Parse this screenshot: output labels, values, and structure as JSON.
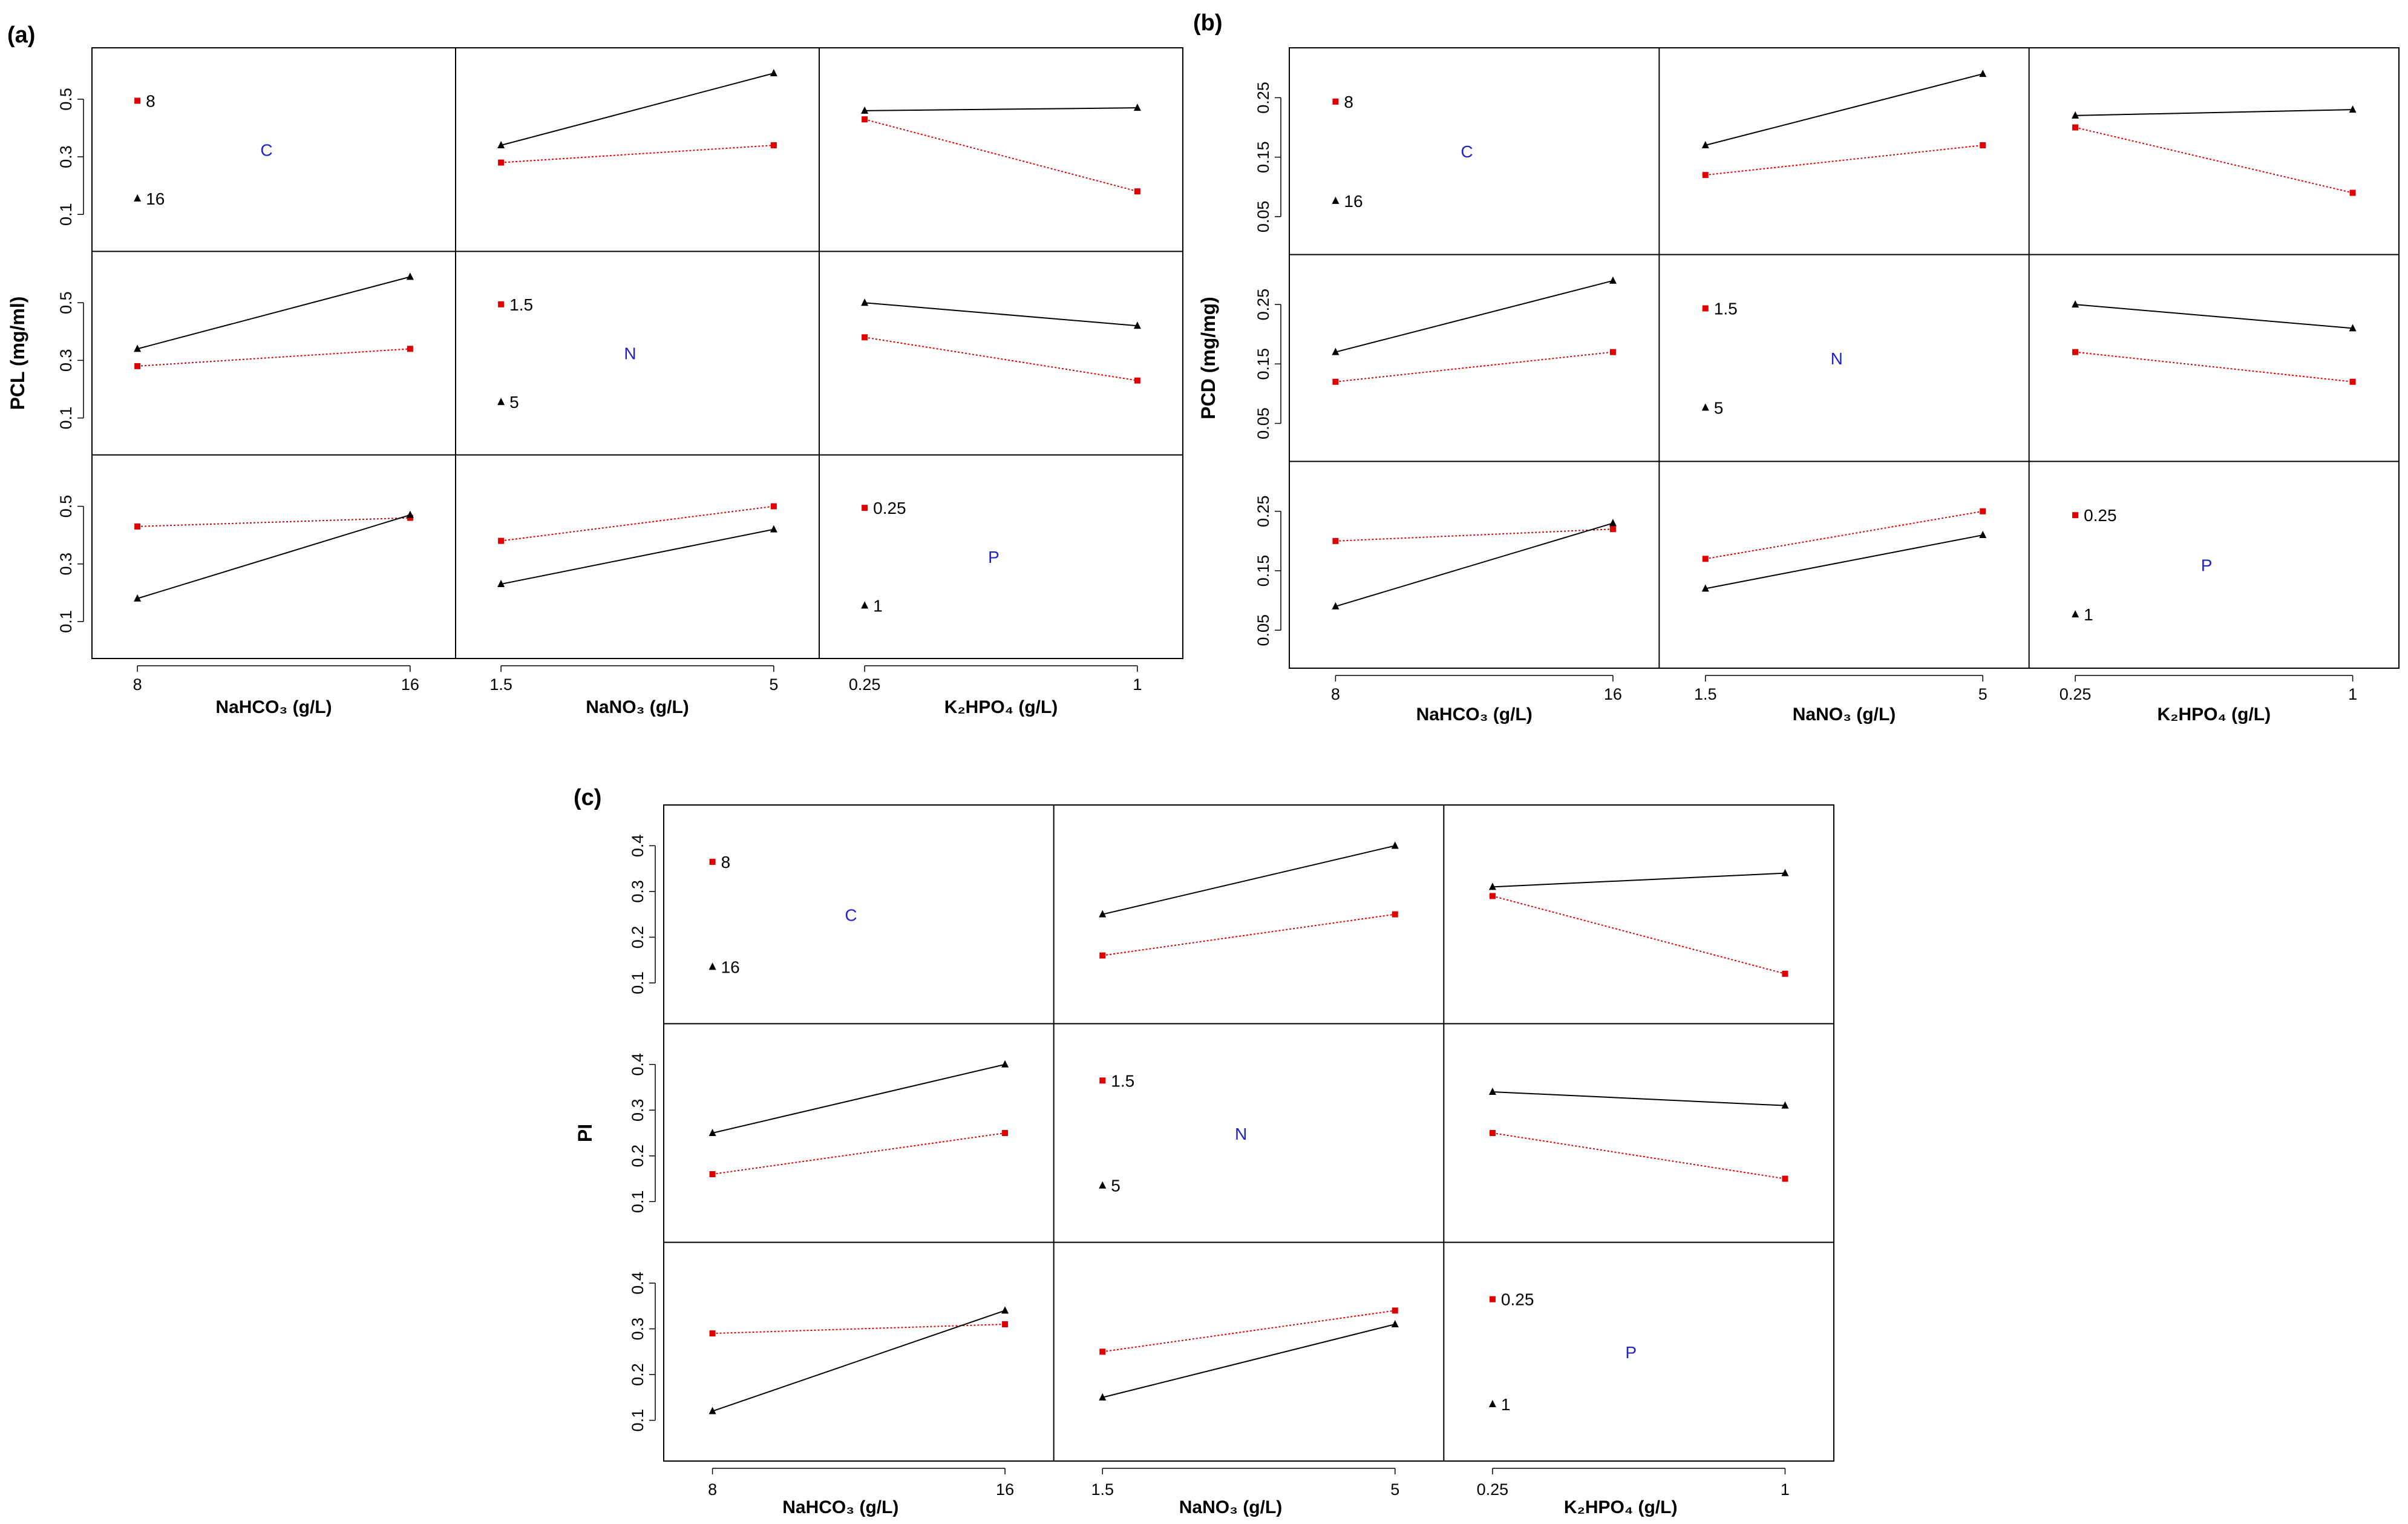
{
  "chart_data": [
    {
      "type": "line",
      "panel_label": "(a)",
      "ylabel": "PCL (mg/ml)",
      "ylim": [
        0.0,
        0.65
      ],
      "yticks": [
        "0.1",
        "0.3",
        "0.5"
      ],
      "ytick_values": [
        0.1,
        0.3,
        0.5
      ],
      "factors": [
        {
          "code": "C",
          "xlabel": "NaHCO₃ (g/L)",
          "levels": [
            "8",
            "16"
          ]
        },
        {
          "code": "N",
          "xlabel": "NaNO₃ (g/L)",
          "levels": [
            "1.5",
            "5"
          ]
        },
        {
          "code": "P",
          "xlabel": "K₂HPO₄ (g/L)",
          "levels": [
            "0.25",
            "1"
          ]
        }
      ],
      "interactions": [
        {
          "row": 0,
          "col": 1,
          "series": [
            {
              "level": "8",
              "values": [
                0.28,
                0.34
              ]
            },
            {
              "level": "16",
              "values": [
                0.34,
                0.59
              ]
            }
          ]
        },
        {
          "row": 0,
          "col": 2,
          "series": [
            {
              "level": "8",
              "values": [
                0.43,
                0.18
              ]
            },
            {
              "level": "16",
              "values": [
                0.46,
                0.47
              ]
            }
          ]
        },
        {
          "row": 1,
          "col": 0,
          "series": [
            {
              "level": "1.5",
              "values": [
                0.28,
                0.34
              ]
            },
            {
              "level": "5",
              "values": [
                0.34,
                0.59
              ]
            }
          ]
        },
        {
          "row": 1,
          "col": 2,
          "series": [
            {
              "level": "1.5",
              "values": [
                0.38,
                0.23
              ]
            },
            {
              "level": "5",
              "values": [
                0.5,
                0.42
              ]
            }
          ]
        },
        {
          "row": 2,
          "col": 0,
          "series": [
            {
              "level": "0.25",
              "values": [
                0.43,
                0.46
              ]
            },
            {
              "level": "1",
              "values": [
                0.18,
                0.47
              ]
            }
          ]
        },
        {
          "row": 2,
          "col": 1,
          "series": [
            {
              "level": "0.25",
              "values": [
                0.38,
                0.5
              ]
            },
            {
              "level": "1",
              "values": [
                0.23,
                0.42
              ]
            }
          ]
        }
      ]
    },
    {
      "type": "line",
      "panel_label": "(b)",
      "ylabel": "PCD (mg/mg)",
      "ylim": [
        0.0,
        0.32
      ],
      "yticks": [
        "0.05",
        "0.15",
        "0.25"
      ],
      "ytick_values": [
        0.05,
        0.15,
        0.25
      ],
      "factors": [
        {
          "code": "C",
          "xlabel": "NaHCO₃ (g/L)",
          "levels": [
            "8",
            "16"
          ]
        },
        {
          "code": "N",
          "xlabel": "NaNO₃ (g/L)",
          "levels": [
            "1.5",
            "5"
          ]
        },
        {
          "code": "P",
          "xlabel": "K₂HPO₄ (g/L)",
          "levels": [
            "0.25",
            "1"
          ]
        }
      ],
      "interactions": [
        {
          "row": 0,
          "col": 1,
          "series": [
            {
              "level": "8",
              "values": [
                0.12,
                0.17
              ]
            },
            {
              "level": "16",
              "values": [
                0.17,
                0.29
              ]
            }
          ]
        },
        {
          "row": 0,
          "col": 2,
          "series": [
            {
              "level": "8",
              "values": [
                0.2,
                0.09
              ]
            },
            {
              "level": "16",
              "values": [
                0.22,
                0.23
              ]
            }
          ]
        },
        {
          "row": 1,
          "col": 0,
          "series": [
            {
              "level": "1.5",
              "values": [
                0.12,
                0.17
              ]
            },
            {
              "level": "5",
              "values": [
                0.17,
                0.29
              ]
            }
          ]
        },
        {
          "row": 1,
          "col": 2,
          "series": [
            {
              "level": "1.5",
              "values": [
                0.17,
                0.12
              ]
            },
            {
              "level": "5",
              "values": [
                0.25,
                0.21
              ]
            }
          ]
        },
        {
          "row": 2,
          "col": 0,
          "series": [
            {
              "level": "0.25",
              "values": [
                0.2,
                0.22
              ]
            },
            {
              "level": "1",
              "values": [
                0.09,
                0.23
              ]
            }
          ]
        },
        {
          "row": 2,
          "col": 1,
          "series": [
            {
              "level": "0.25",
              "values": [
                0.17,
                0.25
              ]
            },
            {
              "level": "1",
              "values": [
                0.12,
                0.21
              ]
            }
          ]
        }
      ]
    },
    {
      "type": "line",
      "panel_label": "(c)",
      "ylabel": "PI",
      "ylim": [
        0.03,
        0.47
      ],
      "yticks": [
        "0.1",
        "0.2",
        "0.3",
        "0.4"
      ],
      "ytick_values": [
        0.1,
        0.2,
        0.3,
        0.4
      ],
      "factors": [
        {
          "code": "C",
          "xlabel": "NaHCO₃ (g/L)",
          "levels": [
            "8",
            "16"
          ]
        },
        {
          "code": "N",
          "xlabel": "NaNO₃ (g/L)",
          "levels": [
            "1.5",
            "5"
          ]
        },
        {
          "code": "P",
          "xlabel": "K₂HPO₄ (g/L)",
          "levels": [
            "0.25",
            "1"
          ]
        }
      ],
      "interactions": [
        {
          "row": 0,
          "col": 1,
          "series": [
            {
              "level": "8",
              "values": [
                0.16,
                0.25
              ]
            },
            {
              "level": "16",
              "values": [
                0.25,
                0.4
              ]
            }
          ]
        },
        {
          "row": 0,
          "col": 2,
          "series": [
            {
              "level": "8",
              "values": [
                0.29,
                0.12
              ]
            },
            {
              "level": "16",
              "values": [
                0.31,
                0.34
              ]
            }
          ]
        },
        {
          "row": 1,
          "col": 0,
          "series": [
            {
              "level": "1.5",
              "values": [
                0.16,
                0.25
              ]
            },
            {
              "level": "5",
              "values": [
                0.25,
                0.4
              ]
            }
          ]
        },
        {
          "row": 1,
          "col": 2,
          "series": [
            {
              "level": "1.5",
              "values": [
                0.25,
                0.15
              ]
            },
            {
              "level": "5",
              "values": [
                0.34,
                0.31
              ]
            }
          ]
        },
        {
          "row": 2,
          "col": 0,
          "series": [
            {
              "level": "0.25",
              "values": [
                0.29,
                0.31
              ]
            },
            {
              "level": "1",
              "values": [
                0.12,
                0.34
              ]
            }
          ]
        },
        {
          "row": 2,
          "col": 1,
          "series": [
            {
              "level": "0.25",
              "values": [
                0.25,
                0.34
              ]
            },
            {
              "level": "1",
              "values": [
                0.15,
                0.31
              ]
            }
          ]
        }
      ]
    }
  ]
}
